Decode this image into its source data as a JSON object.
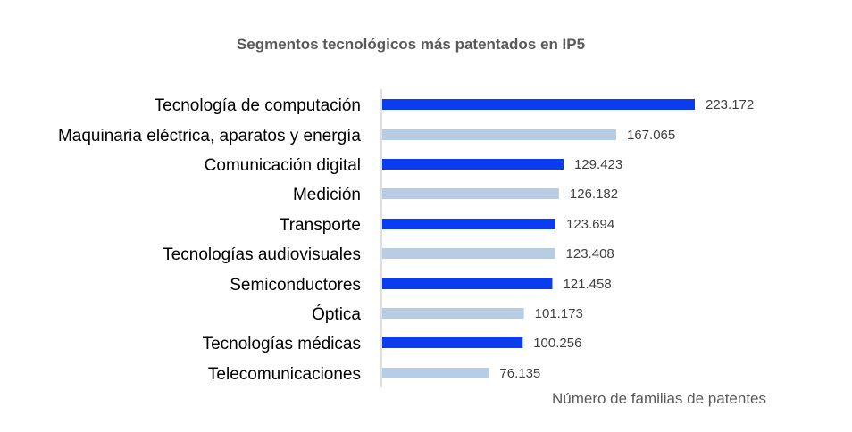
{
  "chart_data": {
    "type": "bar",
    "orientation": "horizontal",
    "title": "Segmentos tecnológicos más patentados en IP5",
    "xlabel": "Número de familias de patentes",
    "ylabel": "",
    "categories": [
      "Tecnología de computación",
      "Maquinaria eléctrica, aparatos y energía",
      "Comunicación digital",
      "Medición",
      "Transporte",
      "Tecnologías audiovisuales",
      "Semiconductores",
      "Óptica",
      "Tecnologías médicas",
      "Telecomunicaciones"
    ],
    "values": [
      223172,
      167065,
      129423,
      126182,
      123694,
      123408,
      121458,
      101173,
      100256,
      76135
    ],
    "value_labels": [
      "223.172",
      "167.065",
      "129.423",
      "126.182",
      "123.694",
      "123.408",
      "121.458",
      "101.173",
      "100.256",
      "76.135"
    ],
    "bar_colors": [
      "#0a3cf0",
      "#b8cce4",
      "#0a3cf0",
      "#b8cce4",
      "#0a3cf0",
      "#b8cce4",
      "#0a3cf0",
      "#b8cce4",
      "#0a3cf0",
      "#b8cce4"
    ],
    "xlim": [
      0,
      223172
    ],
    "grid": false,
    "legend": "none"
  },
  "colors": {
    "dark_bar": "#0a3cf0",
    "light_bar": "#b8cce4",
    "axis": "#bfbfbf",
    "title": "#595959"
  }
}
